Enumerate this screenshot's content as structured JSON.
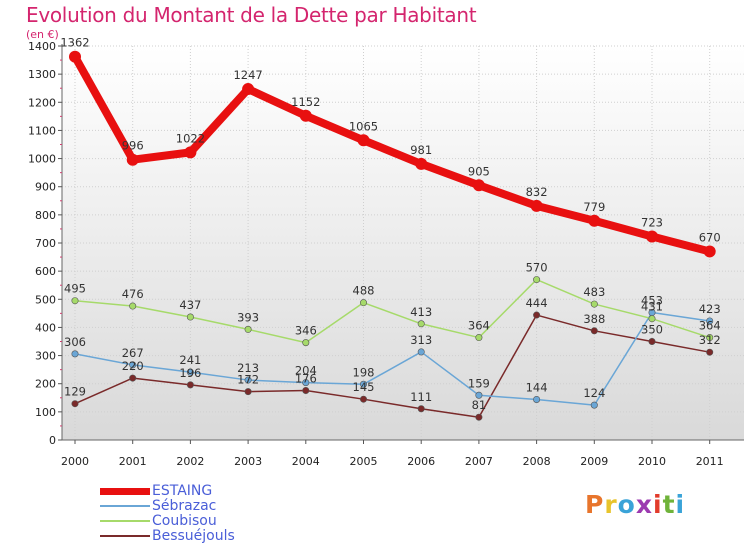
{
  "title": "Evolution du Montant de la Dette par Habitant",
  "unit": "(en €)",
  "brand": {
    "letters": [
      "P",
      "r",
      "o",
      "x",
      "i",
      "t",
      "i"
    ],
    "colors": [
      "#e8752c",
      "#e8c42c",
      "#3aa3d8",
      "#9c3ab0",
      "#e23c2c",
      "#6fb33a",
      "#3aa3d8"
    ]
  },
  "chart_data": {
    "type": "line",
    "title": "Evolution du Montant de la Dette par Habitant",
    "ylabel": "(en €)",
    "xlabel": "",
    "x": [
      "2000",
      "2001",
      "2002",
      "2003",
      "2004",
      "2005",
      "2006",
      "2007",
      "2008",
      "2009",
      "2010",
      "2011"
    ],
    "ylim": [
      0,
      1400
    ],
    "yticks": [
      "0",
      "100",
      "200",
      "300",
      "400",
      "500",
      "600",
      "700",
      "800",
      "900",
      "1000",
      "1100",
      "1200",
      "1300",
      "1400"
    ],
    "grid": true,
    "legend_position": "bottom-left",
    "series": [
      {
        "name": "Bessuéjouls",
        "color": "#7a2a2a",
        "width": 1.5,
        "radius": 3.2,
        "values": [
          129,
          220,
          196,
          172,
          176,
          145,
          111,
          81,
          444,
          388,
          350,
          312
        ],
        "labels": [
          "129",
          "220",
          "196",
          "172",
          "176",
          "145",
          "111",
          "81",
          "444",
          "388",
          "350",
          "312"
        ]
      },
      {
        "name": "Sébrazac",
        "color": "#6aa6d6",
        "width": 1.5,
        "radius": 3.2,
        "values": [
          306,
          267,
          241,
          213,
          204,
          198,
          313,
          159,
          144,
          124,
          453,
          423
        ],
        "labels": [
          "306",
          "267",
          "241",
          "213",
          "204",
          "198",
          "313",
          "159",
          "144",
          "124",
          "453",
          "423"
        ]
      },
      {
        "name": "Coubisou",
        "color": "#a6da6a",
        "width": 1.5,
        "radius": 3.2,
        "values": [
          495,
          476,
          437,
          393,
          346,
          488,
          413,
          364,
          570,
          483,
          431,
          364
        ],
        "labels": [
          "495",
          "476",
          "437",
          "393",
          "346",
          "488",
          "413",
          "364",
          "570",
          "483",
          "431",
          "364"
        ]
      },
      {
        "name": "ESTAING",
        "color": "#e81010",
        "width": 8,
        "radius": 6,
        "values": [
          1362,
          996,
          1022,
          1247,
          1152,
          1065,
          981,
          905,
          832,
          779,
          723,
          670
        ],
        "labels": [
          "1362",
          "996",
          "1022",
          "1247",
          "1152",
          "1065",
          "981",
          "905",
          "832",
          "779",
          "723",
          "670"
        ]
      }
    ]
  },
  "legend": [
    {
      "name": "ESTAING",
      "color": "#e81010",
      "thickness": 7
    },
    {
      "name": "Sébrazac",
      "color": "#6aa6d6",
      "thickness": 2
    },
    {
      "name": "Coubisou",
      "color": "#a6da6a",
      "thickness": 2
    },
    {
      "name": "Bessuéjouls",
      "color": "#7a2a2a",
      "thickness": 2
    }
  ]
}
